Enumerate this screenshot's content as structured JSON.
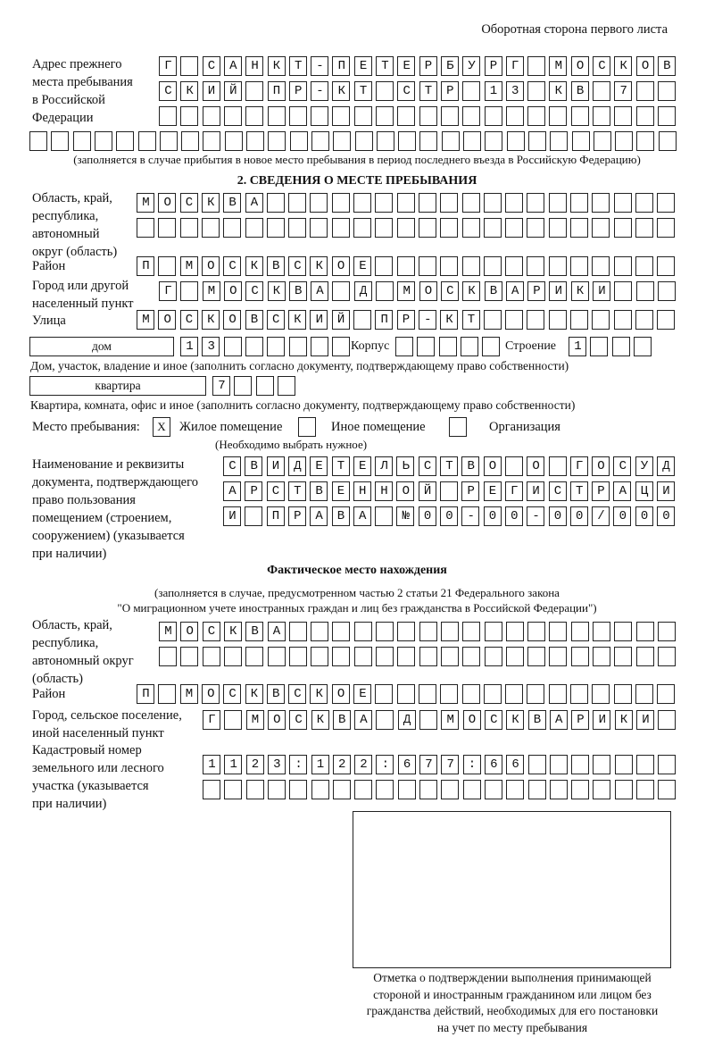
{
  "header": {
    "side": "Оборотная сторона первого листа"
  },
  "prev_address": {
    "label": [
      "Адрес прежнего",
      "места пребывания",
      "в Российской",
      "Федерации"
    ],
    "rows": [
      "Г САНКТ-ПЕТЕРБУРГ МОСКОВ",
      "СКИЙ ПР-КТ СТР 13 КВ 7  ",
      "",
      ""
    ],
    "note": "(заполняется в случае прибытия в новое место пребывания в период последнего въезда в Российскую Федерацию)"
  },
  "section2": {
    "title": "2. СВЕДЕНИЯ О МЕСТЕ ПРЕБЫВАНИЯ",
    "region_label": [
      "Область, край,",
      "республика,",
      "автономный",
      "округ (область)"
    ],
    "region_rows": [
      "МОСКВА",
      ""
    ],
    "district_label": "Район",
    "district": "П МОСКВСКОЕ",
    "city_label": [
      "Город или другой",
      "населенный пункт"
    ],
    "city": "Г МОСКВА Д МОСКВАРИКИ",
    "street_label": "Улица",
    "street": "МОСКОВСКИЙ ПР-КТ",
    "house_type": "дом",
    "house": "13",
    "korpus_label": "Корпус",
    "korpus": "",
    "building_label": "Строение",
    "building": "1",
    "house_note": "Дом, участок, владение и иное (заполнить согласно документу, подтверждающему право собственности)",
    "apt_type": "квартира",
    "apt": "7",
    "apt_note": "Квартира, комната, офис и иное (заполнить согласно документу, подтверждающему право собственности)",
    "stay_label": "Место пребывания:",
    "stay_options": [
      {
        "label": "Жилое помещение",
        "mark": "X"
      },
      {
        "label": "Иное помещение",
        "mark": ""
      },
      {
        "label": "Организация",
        "mark": ""
      }
    ],
    "stay_note": "(Необходимо выбрать нужное)",
    "doc_label": [
      "Наименование и реквизиты",
      "документа, подтверждающего",
      "право пользования",
      "помещением (строением,",
      "сооружением) (указывается",
      "при наличии)"
    ],
    "doc_rows": [
      "СВИДЕТЕЛЬСТВО О ГОСУД",
      "АРСТВЕННОЙ РЕГИСТРАЦИ",
      "И ПРАВА №00-00-00/000"
    ]
  },
  "actual": {
    "title": "Фактическое место нахождения",
    "note1": "(заполняется в случае, предусмотренном частью 2 статьи 21 Федерального закона",
    "note2": "\"О миграционном учете иностранных граждан и лиц без гражданства в Российской Федерации\")",
    "region_label": [
      "Область, край,",
      "республика,",
      "автономный округ",
      "(область)"
    ],
    "region_rows": [
      "МОСКВА",
      ""
    ],
    "district_label": "Район",
    "district": "П МОСКВСКОЕ",
    "city_label": [
      "Город, сельское поселение,",
      "иной населенный пункт"
    ],
    "city": "Г МОСКВА Д МОСКВАРИКИ",
    "cadastre_label": [
      "Кадастровый номер",
      "земельного или лесного",
      "участка (указывается",
      "при наличии)"
    ],
    "cadastre_rows": [
      "1123:122:677:66",
      ""
    ]
  },
  "confirmation": {
    "caption": [
      "Отметка о подтверждении выполнения принимающей",
      "стороной и иностранным гражданином или лицом без",
      "гражданства действий, необходимых для его постановки",
      "на учет по месту пребывания"
    ]
  }
}
